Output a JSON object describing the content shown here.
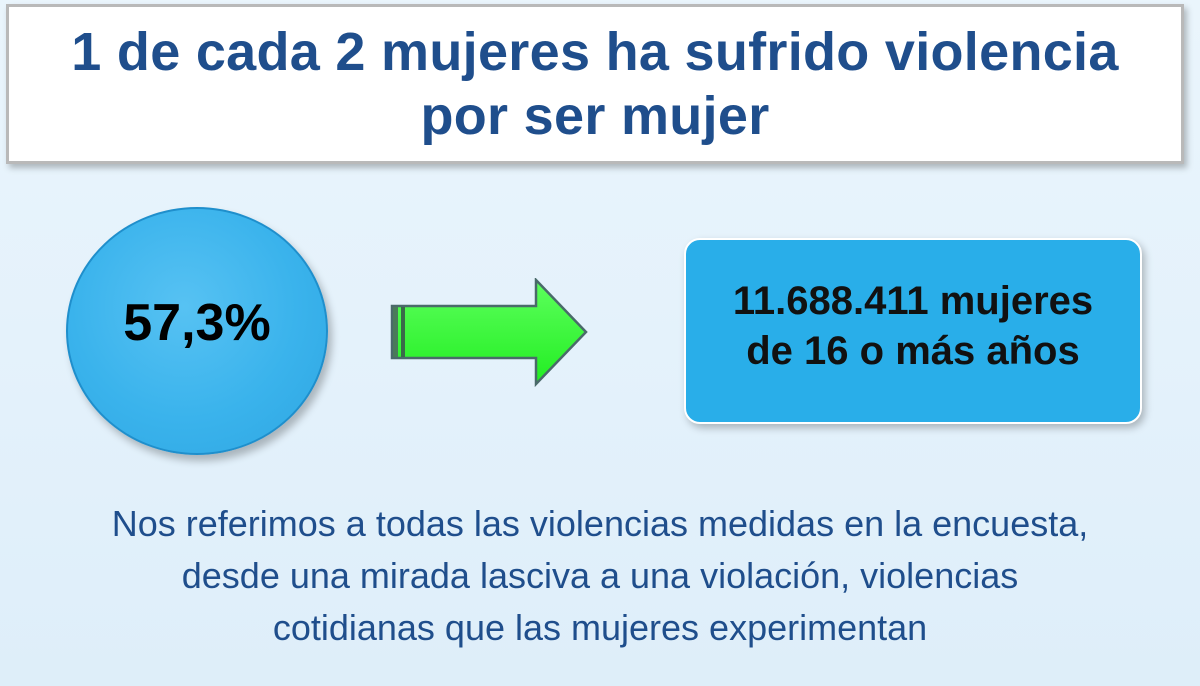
{
  "title": {
    "line1": "1 de cada 2 mujeres ha sufrido violencia",
    "line2": "por ser mujer"
  },
  "stat": {
    "percent": "57,3%"
  },
  "result": {
    "line1": "11.688.411 mujeres",
    "line2": "de 16 o más años"
  },
  "note": {
    "line1": "Nos referimos a todas las violencias medidas en la encuesta,",
    "line2": "desde una mirada lasciva a una violación, violencias",
    "line3": "cotidianas que las mujeres experimentan"
  },
  "icons": {
    "arrow": "arrow-right-icon"
  },
  "colors": {
    "title_text": "#1f4e8c",
    "circle_fill": "#3ab3ec",
    "arrow_fill": "#33ff33",
    "box_fill": "#29aee9"
  }
}
